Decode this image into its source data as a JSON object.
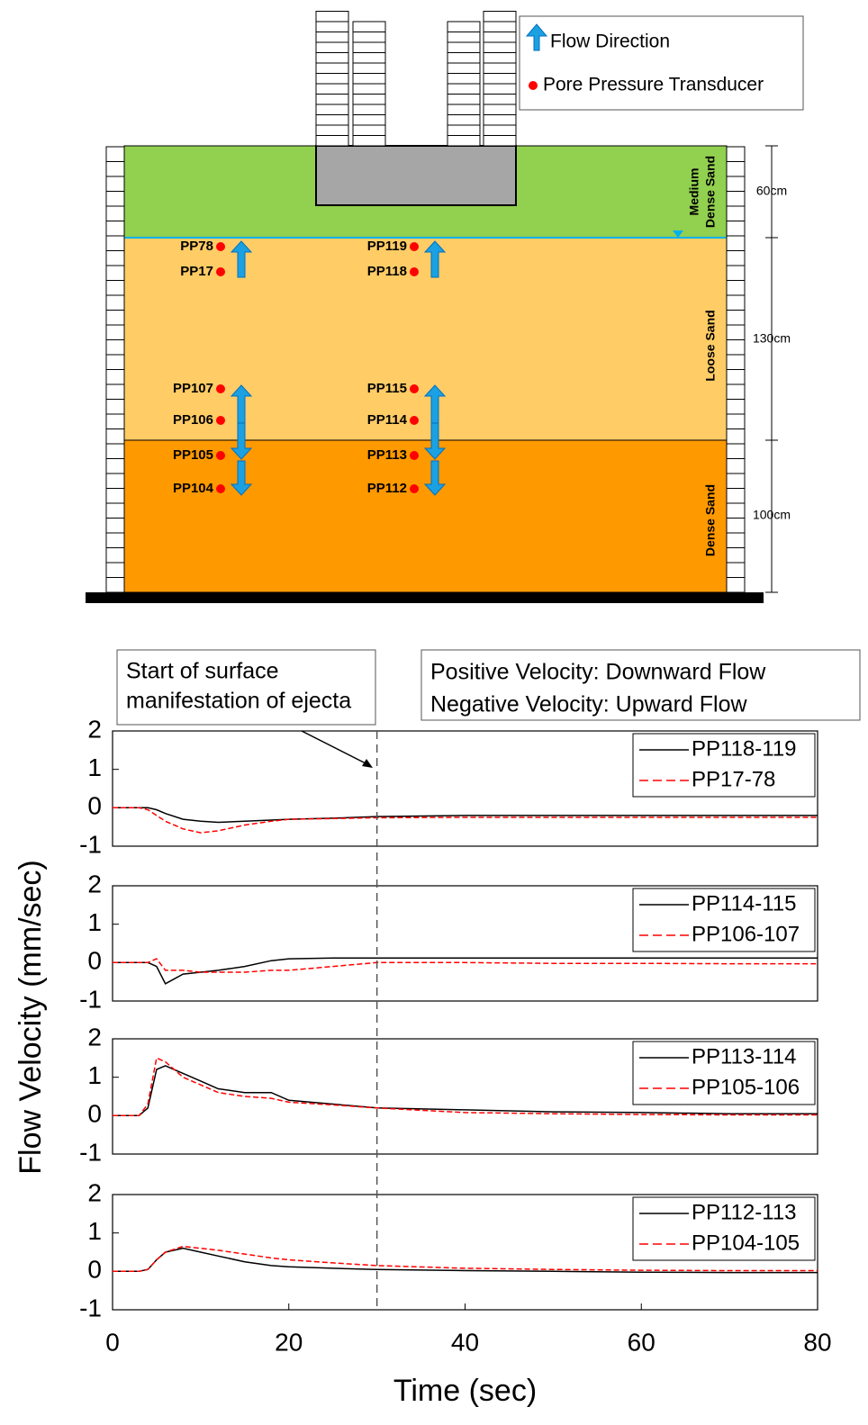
{
  "diagram": {
    "legend": [
      "Flow Direction",
      "Pore Pressure Transducer"
    ],
    "layers": [
      [
        "Medium",
        "Dense Sand"
      ],
      [
        "Loose Sand"
      ],
      [
        "Dense Sand"
      ]
    ],
    "dimensions": [
      "60cm",
      "130cm",
      "100cm"
    ],
    "sensors": [
      "PP78",
      "PP17",
      "PP107",
      "PP106",
      "PP105",
      "PP104",
      "PP119",
      "PP118",
      "PP115",
      "PP114",
      "PP113",
      "PP112"
    ]
  },
  "figure": {
    "ylabel": "Flow Velocity (mm/sec)",
    "annotation": [
      "Start of surface",
      "manifestation of ejecta"
    ],
    "annotation_x": 30,
    "note": [
      "Positive Velocity: Downward Flow",
      "Negative Velocity: Upward Flow"
    ]
  },
  "chart_data": [
    {
      "type": "line",
      "x": [
        0,
        3,
        4,
        5,
        6,
        8,
        10,
        12,
        15,
        18,
        20,
        25,
        30,
        40,
        50,
        60,
        70,
        80
      ],
      "series": [
        {
          "name": "PP118-119",
          "color": "#000000",
          "dash": false,
          "values": [
            0,
            0,
            0,
            -0.05,
            -0.15,
            -0.3,
            -0.35,
            -0.38,
            -0.35,
            -0.32,
            -0.3,
            -0.27,
            -0.23,
            -0.2,
            -0.2,
            -0.2,
            -0.2,
            -0.2
          ]
        },
        {
          "name": "PP17-78",
          "color": "#ff0000",
          "dash": true,
          "values": [
            0,
            0,
            -0.05,
            -0.2,
            -0.35,
            -0.55,
            -0.65,
            -0.6,
            -0.45,
            -0.35,
            -0.3,
            -0.28,
            -0.26,
            -0.25,
            -0.25,
            -0.25,
            -0.25,
            -0.25
          ]
        }
      ],
      "xlim": [
        0,
        80
      ],
      "ylim": [
        -1,
        2
      ],
      "yticks": [
        -1,
        0,
        1,
        2
      ]
    },
    {
      "type": "line",
      "x": [
        0,
        3,
        4,
        5,
        6,
        8,
        10,
        12,
        15,
        18,
        20,
        25,
        30,
        40,
        50,
        60,
        70,
        80
      ],
      "series": [
        {
          "name": "PP114-115",
          "color": "#000000",
          "dash": false,
          "values": [
            0,
            0,
            0,
            -0.1,
            -0.55,
            -0.3,
            -0.25,
            -0.2,
            -0.1,
            0.05,
            0.1,
            0.12,
            0.12,
            0.12,
            0.12,
            0.12,
            0.12,
            0.12
          ]
        },
        {
          "name": "PP106-107",
          "color": "#ff0000",
          "dash": true,
          "values": [
            0,
            0,
            0,
            0.1,
            -0.2,
            -0.2,
            -0.25,
            -0.25,
            -0.25,
            -0.2,
            -0.2,
            -0.1,
            0,
            0,
            -0.02,
            -0.02,
            -0.03,
            -0.03
          ]
        }
      ],
      "xlim": [
        0,
        80
      ],
      "ylim": [
        -1,
        2
      ],
      "yticks": [
        -1,
        0,
        1,
        2
      ]
    },
    {
      "type": "line",
      "x": [
        0,
        3,
        4,
        5,
        6,
        8,
        10,
        12,
        15,
        18,
        20,
        25,
        30,
        40,
        50,
        60,
        70,
        80
      ],
      "series": [
        {
          "name": "PP113-114",
          "color": "#000000",
          "dash": false,
          "values": [
            0,
            0,
            0.2,
            1.2,
            1.3,
            1.1,
            0.9,
            0.7,
            0.6,
            0.6,
            0.4,
            0.3,
            0.2,
            0.15,
            0.1,
            0.08,
            0.05,
            0.05
          ]
        },
        {
          "name": "PP105-106",
          "color": "#ff0000",
          "dash": true,
          "values": [
            0,
            0,
            0.3,
            1.5,
            1.4,
            1.0,
            0.8,
            0.6,
            0.5,
            0.45,
            0.35,
            0.28,
            0.2,
            0.08,
            0.05,
            0.03,
            0.02,
            0.02
          ]
        }
      ],
      "xlim": [
        0,
        80
      ],
      "ylim": [
        -1,
        2
      ],
      "yticks": [
        -1,
        0,
        1,
        2
      ]
    },
    {
      "type": "line",
      "x": [
        0,
        3,
        4,
        5,
        6,
        8,
        10,
        12,
        15,
        18,
        20,
        25,
        30,
        40,
        50,
        60,
        70,
        80
      ],
      "series": [
        {
          "name": "PP112-113",
          "color": "#000000",
          "dash": false,
          "values": [
            0,
            0,
            0.05,
            0.3,
            0.5,
            0.6,
            0.5,
            0.4,
            0.25,
            0.15,
            0.12,
            0.08,
            0.05,
            0.02,
            0,
            -0.02,
            -0.03,
            -0.03
          ]
        },
        {
          "name": "PP104-105",
          "color": "#ff0000",
          "dash": true,
          "values": [
            0,
            0,
            0.05,
            0.3,
            0.5,
            0.65,
            0.6,
            0.55,
            0.45,
            0.35,
            0.3,
            0.22,
            0.15,
            0.08,
            0.05,
            0.03,
            0.02,
            0.02
          ]
        }
      ],
      "xlim": [
        0,
        80
      ],
      "ylim": [
        -1,
        2
      ],
      "yticks": [
        -1,
        0,
        1,
        2
      ],
      "xticks": [
        0,
        20,
        40,
        60,
        80
      ],
      "xlabel": "Time (sec)"
    }
  ]
}
